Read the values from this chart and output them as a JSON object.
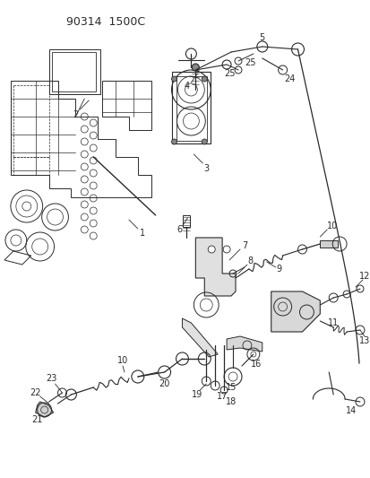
{
  "title": "90314  1500C",
  "bg_color": "#ffffff",
  "line_color": "#2a2a2a",
  "figsize": [
    4.14,
    5.33
  ],
  "dpi": 100,
  "label_fs": 7.0
}
